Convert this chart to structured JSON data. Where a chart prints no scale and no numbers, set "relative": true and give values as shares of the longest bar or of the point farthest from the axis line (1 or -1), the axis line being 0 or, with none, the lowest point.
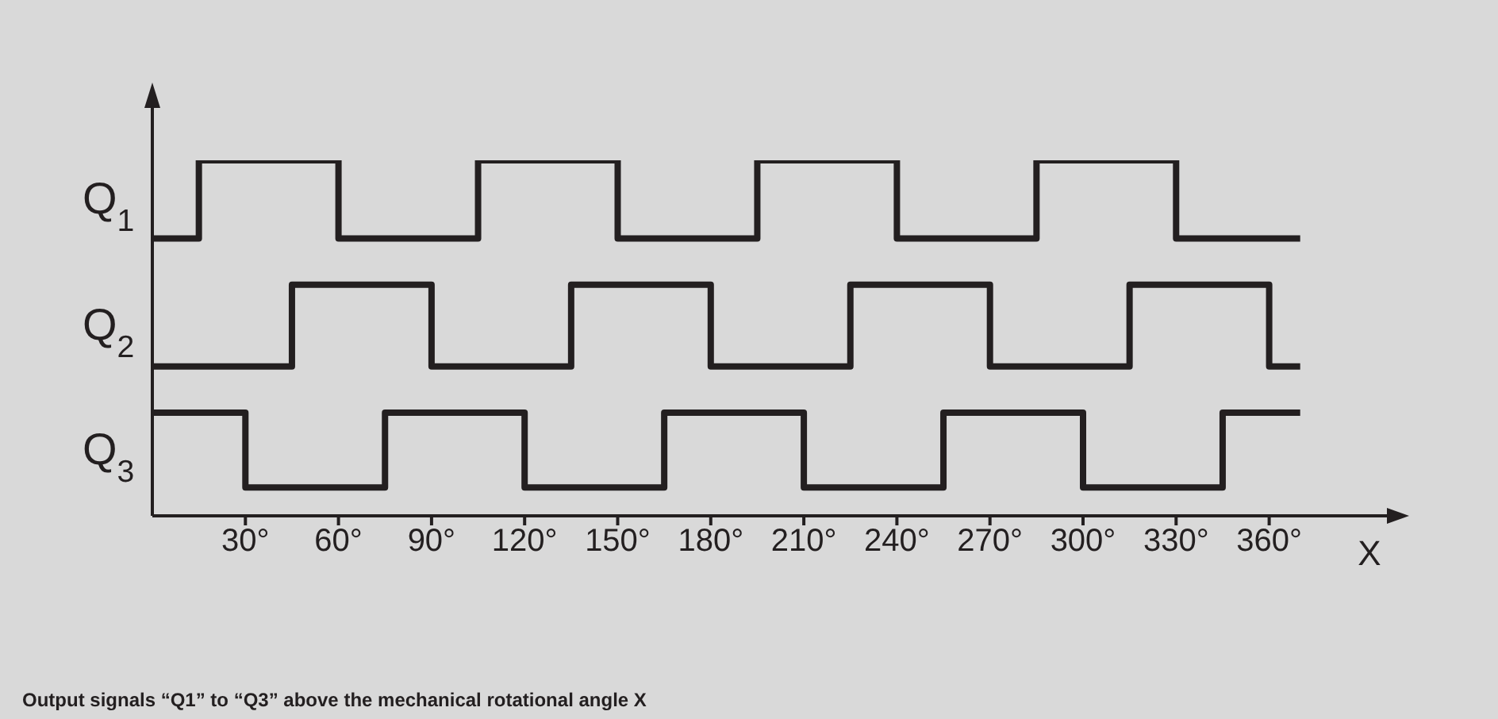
{
  "chart_data": {
    "type": "step",
    "relative": true,
    "xlabel": "X",
    "xlim": [
      0,
      400
    ],
    "xticks": [
      {
        "value": 30,
        "label": "30°"
      },
      {
        "value": 60,
        "label": "60°"
      },
      {
        "value": 90,
        "label": "90°"
      },
      {
        "value": 120,
        "label": "120°"
      },
      {
        "value": 150,
        "label": "150°"
      },
      {
        "value": 180,
        "label": "180°"
      },
      {
        "value": 210,
        "label": "210°"
      },
      {
        "value": 240,
        "label": "240°"
      },
      {
        "value": 270,
        "label": "270°"
      },
      {
        "value": 300,
        "label": "300°"
      },
      {
        "value": 330,
        "label": "330°"
      },
      {
        "value": 360,
        "label": "360°"
      }
    ],
    "series": [
      {
        "name": "Q$_{1}$",
        "color": "#231f20",
        "x": [
          0,
          15,
          60,
          105,
          150,
          195,
          240,
          285,
          330,
          370
        ],
        "values": [
          0.78,
          1,
          0.78,
          1,
          0.78,
          1,
          0.78,
          1,
          0.78,
          0.78
        ]
      },
      {
        "name": "Q$_{2}$",
        "color": "#231f20",
        "x": [
          0,
          45,
          90,
          135,
          180,
          225,
          270,
          315,
          360,
          370
        ],
        "values": [
          0.42,
          0.65,
          0.42,
          0.65,
          0.42,
          0.65,
          0.42,
          0.65,
          0.42,
          0.42
        ]
      },
      {
        "name": "Q$_{3}$",
        "color": "#231f20",
        "x": [
          0,
          30,
          75,
          120,
          165,
          210,
          255,
          300,
          345,
          370
        ],
        "values": [
          0.29,
          0.08,
          0.29,
          0.08,
          0.29,
          0.08,
          0.29,
          0.08,
          0.29,
          0.29
        ]
      }
    ],
    "grid": false,
    "legend": false,
    "marker": "none",
    "line_style": "solid",
    "annotations": [
      "Output signals “Q1” to “Q3” above the mechanical rotational angle X"
    ]
  }
}
